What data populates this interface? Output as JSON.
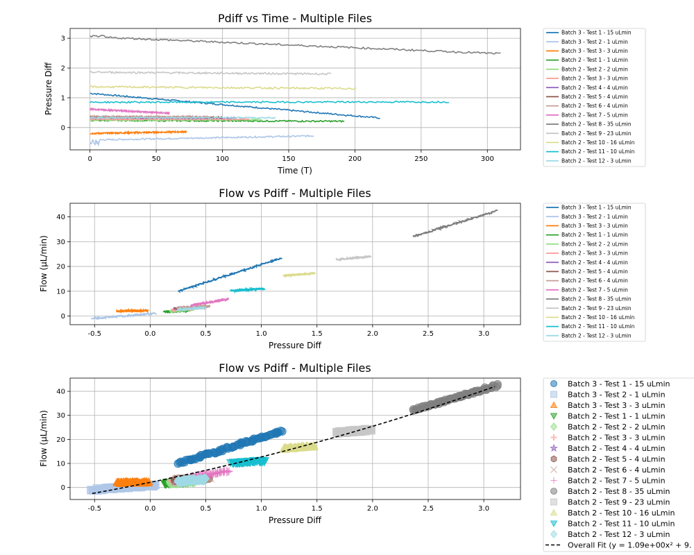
{
  "series_names": [
    "Batch 3 - Test 1 - 15 uLmin",
    "Batch 3 - Test 2 - 1 uLmin",
    "Batch 3 - Test 3 - 3 uLmin",
    "Batch 2 - Test 1 - 1 uLmin",
    "Batch 2 - Test 2 - 2 uLmin",
    "Batch 2 - Test 3 - 3 uLmin",
    "Batch 2 - Test 4 - 4 uLmin",
    "Batch 2 - Test 5 - 4 uLmin",
    "Batch 2 - Test 6 - 4 uLmin",
    "Batch 2 - Test 7 - 5 uLmin",
    "Batch 2 - Test 8 - 35 uLmin",
    "Batch 2 - Test 9 - 23 uLmin",
    "Batch 2 - Test 10 - 16 uLmin",
    "Batch 2 - Test 11 - 10 uLmin",
    "Batch 2 - Test 12 - 3 uLmin"
  ],
  "colors": [
    "#1f77b4",
    "#aec7e8",
    "#ff7f0e",
    "#2ca02c",
    "#98df8a",
    "#ff9896",
    "#9467bd",
    "#8c564b",
    "#c49c94",
    "#e377c2",
    "#7f7f7f",
    "#c7c7c7",
    "#dbdb8d",
    "#17becf",
    "#9edae5"
  ],
  "markers": [
    "circle",
    "square",
    "triangle-up",
    "triangle-down",
    "diamond",
    "plus",
    "star",
    "hexagon",
    "x",
    "thin-plus",
    "circle",
    "square",
    "triangle-up",
    "triangle-down",
    "diamond"
  ],
  "fit_label": "Overall Fit (y = 1.09e+00x² + 9.",
  "chart_data": [
    {
      "type": "line",
      "title": "Pdiff vs Time - Multiple Files",
      "xlabel": "Time (T)",
      "ylabel": "Pressure Diff",
      "xlim": [
        -15,
        325
      ],
      "ylim": [
        -0.75,
        3.33
      ],
      "xticks": [
        0,
        50,
        100,
        150,
        200,
        250,
        300
      ],
      "yticks": [
        0,
        1,
        2,
        3
      ],
      "grid": true,
      "legend": "outside-right",
      "series": [
        {
          "name": "Batch 3 - Test 1 - 15 uLmin",
          "t_end": 219,
          "start": 1.15,
          "end": 0.32
        },
        {
          "name": "Batch 3 - Test 2 - 1 uLmin",
          "t_end": 169,
          "start": -0.42,
          "end": -0.28
        },
        {
          "name": "Batch 3 - Test 3 - 3 uLmin",
          "t_end": 73,
          "start": -0.2,
          "end": -0.14
        },
        {
          "name": "Batch 2 - Test 1 - 1 uLmin",
          "t_end": 192,
          "start": 0.24,
          "end": 0.21
        },
        {
          "name": "Batch 2 - Test 2 - 2 uLmin",
          "t_end": 130,
          "start": 0.25,
          "end": 0.26
        },
        {
          "name": "Batch 2 - Test 3 - 3 uLmin",
          "t_end": 120,
          "start": 0.28,
          "end": 0.28
        },
        {
          "name": "Batch 2 - Test 4 - 4 uLmin",
          "t_end": 110,
          "start": 0.33,
          "end": 0.32
        },
        {
          "name": "Batch 2 - Test 5 - 4 uLmin",
          "t_end": 100,
          "start": 0.35,
          "end": 0.34
        },
        {
          "name": "Batch 2 - Test 6 - 4 uLmin",
          "t_end": 90,
          "start": 0.37,
          "end": 0.36
        },
        {
          "name": "Batch 2 - Test 7 - 5 uLmin",
          "t_end": 60,
          "start": 0.62,
          "end": 0.48
        },
        {
          "name": "Batch 2 - Test 8 - 35 uLmin",
          "t_end": 310,
          "start": 3.05,
          "end": 2.48
        },
        {
          "name": "Batch 2 - Test 9 - 23 uLmin",
          "t_end": 182,
          "start": 1.86,
          "end": 1.8
        },
        {
          "name": "Batch 2 - Test 10 - 16 uLmin",
          "t_end": 201,
          "start": 1.37,
          "end": 1.31
        },
        {
          "name": "Batch 2 - Test 11 - 10 uLmin",
          "t_end": 271,
          "start": 0.85,
          "end": 0.86
        },
        {
          "name": "Batch 2 - Test 12 - 3 uLmin",
          "t_end": 140,
          "start": 0.33,
          "end": 0.33
        }
      ]
    },
    {
      "type": "line",
      "title": "Flow vs Pdiff - Multiple Files",
      "xlabel": "Pressure Diff",
      "ylabel": "Flow (µL/min)",
      "xlim": [
        -0.72,
        3.33
      ],
      "ylim": [
        -3.5,
        45.5
      ],
      "xticks": [
        -0.5,
        0.0,
        0.5,
        1.0,
        1.5,
        2.0,
        2.5,
        3.0
      ],
      "yticks": [
        0,
        10,
        20,
        30,
        40
      ],
      "grid": true,
      "legend": "outside-right",
      "series": [
        {
          "name": "Batch 3 - Test 1 - 15 uLmin",
          "x": [
            0.25,
            1.19
          ],
          "y": [
            10.0,
            23.5
          ]
        },
        {
          "name": "Batch 3 - Test 2 - 1 uLmin",
          "x": [
            -0.53,
            0.05
          ],
          "y": [
            -1.0,
            1.0
          ]
        },
        {
          "name": "Batch 3 - Test 3 - 3 uLmin",
          "x": [
            -0.3,
            -0.02
          ],
          "y": [
            2.0,
            2.2
          ]
        },
        {
          "name": "Batch 2 - Test 1 - 1 uLmin",
          "x": [
            0.13,
            0.35
          ],
          "y": [
            1.7,
            2.2
          ]
        },
        {
          "name": "Batch 2 - Test 2 - 2 uLmin",
          "x": [
            0.18,
            0.4
          ],
          "y": [
            2.0,
            2.7
          ]
        },
        {
          "name": "Batch 2 - Test 3 - 3 uLmin",
          "x": [
            0.2,
            0.45
          ],
          "y": [
            2.5,
            3.2
          ]
        },
        {
          "name": "Batch 2 - Test 4 - 4 uLmin",
          "x": [
            0.22,
            0.5
          ],
          "y": [
            3.0,
            3.6
          ]
        },
        {
          "name": "Batch 2 - Test 5 - 4 uLmin",
          "x": [
            0.23,
            0.52
          ],
          "y": [
            3.1,
            3.8
          ]
        },
        {
          "name": "Batch 2 - Test 6 - 4 uLmin",
          "x": [
            0.24,
            0.53
          ],
          "y": [
            3.3,
            4.0
          ]
        },
        {
          "name": "Batch 2 - Test 7 - 5 uLmin",
          "x": [
            0.37,
            0.7
          ],
          "y": [
            4.3,
            6.8
          ]
        },
        {
          "name": "Batch 2 - Test 8 - 35 uLmin",
          "x": [
            2.36,
            3.12
          ],
          "y": [
            32.0,
            42.5
          ]
        },
        {
          "name": "Batch 2 - Test 9 - 23 uLmin",
          "x": [
            1.68,
            1.98
          ],
          "y": [
            22.8,
            24.0
          ]
        },
        {
          "name": "Batch 2 - Test 10 - 16 uLmin",
          "x": [
            1.2,
            1.48
          ],
          "y": [
            16.2,
            17.3
          ]
        },
        {
          "name": "Batch 2 - Test 11 - 10 uLmin",
          "x": [
            0.73,
            1.02
          ],
          "y": [
            10.2,
            11.0
          ]
        },
        {
          "name": "Batch 2 - Test 12 - 3 uLmin",
          "x": [
            0.25,
            0.5
          ],
          "y": [
            2.6,
            3.4
          ]
        }
      ]
    },
    {
      "type": "scatter",
      "title": "Flow vs Pdiff - Multiple Files",
      "xlabel": "Pressure Diff",
      "ylabel": "Flow (µL/min)",
      "xlim": [
        -0.72,
        3.33
      ],
      "ylim": [
        -5.0,
        45.5
      ],
      "xticks": [
        -0.5,
        0.0,
        0.5,
        1.0,
        1.5,
        2.0,
        2.5,
        3.0
      ],
      "yticks": [
        0,
        10,
        20,
        30,
        40
      ],
      "grid": true,
      "legend": "outside-right",
      "fit": {
        "x": [
          -0.52,
          3.1
        ],
        "a": 1.09,
        "y_start": -2.5,
        "y_end": 42.0
      }
    }
  ]
}
